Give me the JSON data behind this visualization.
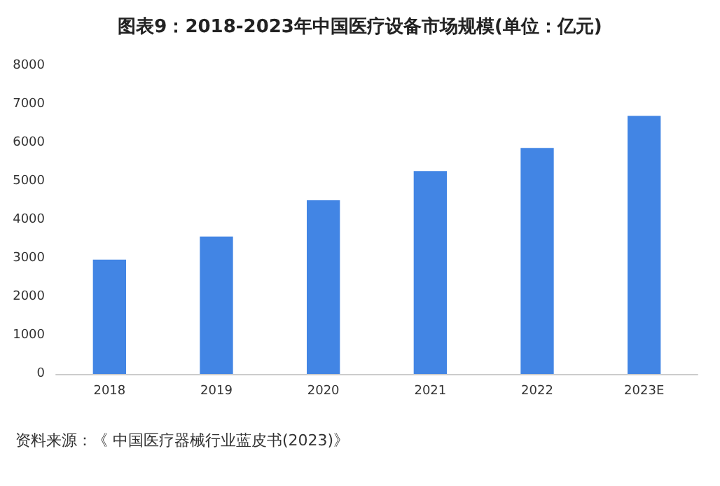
{
  "chart_data": {
    "type": "bar",
    "title": "图表9：2018-2023年中国医疗设备市场规模(单位：亿元)",
    "categories": [
      "2018",
      "2019",
      "2020",
      "2021",
      "2022",
      "2023E"
    ],
    "values": [
      2970,
      3570,
      4510,
      5270,
      5870,
      6700
    ],
    "color": "#4285e4",
    "ylim": [
      0,
      8000
    ],
    "yticks": [
      0,
      1000,
      2000,
      3000,
      4000,
      5000,
      6000,
      7000,
      8000
    ],
    "grid": false,
    "annotations": [
      "资料来源：《 中国医疗器械行业蓝皮书(2023)》"
    ]
  }
}
